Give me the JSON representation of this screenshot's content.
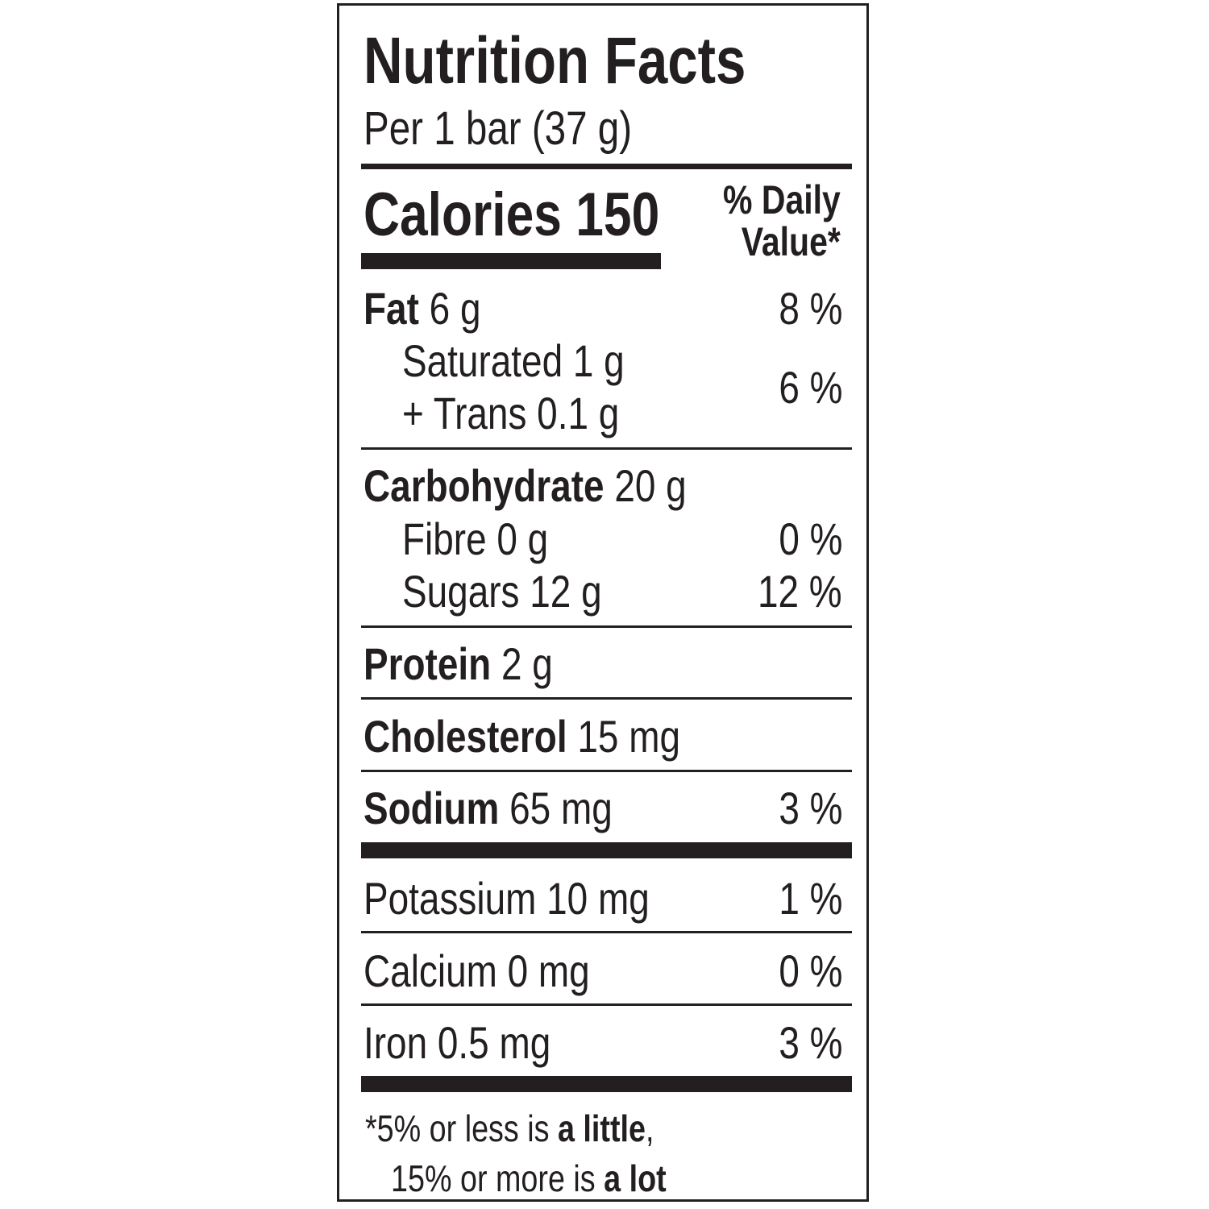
{
  "label": {
    "title": "Nutrition Facts",
    "serving": "Per 1 bar (37 g)",
    "calories_label": "Calories",
    "calories_value": "150",
    "daily_value_header_line1": "% Daily",
    "daily_value_header_line2": "Value*"
  },
  "nutrients": {
    "fat": {
      "name": "Fat",
      "amount": "6 g",
      "dv": "8 %"
    },
    "saturated": {
      "name": "Saturated 1 g"
    },
    "trans": {
      "name": "+ Trans 0.1 g"
    },
    "sat_trans_dv": "6 %",
    "carbohydrate": {
      "name": "Carbohydrate",
      "amount": "20 g"
    },
    "fibre": {
      "name": "Fibre 0 g",
      "dv": "0 %"
    },
    "sugars": {
      "name": "Sugars 12 g",
      "dv": "12 %"
    },
    "protein": {
      "name": "Protein",
      "amount": "2 g"
    },
    "cholesterol": {
      "name": "Cholesterol",
      "amount": "15 mg"
    },
    "sodium": {
      "name": "Sodium",
      "amount": "65 mg",
      "dv": "3 %"
    },
    "potassium": {
      "name": "Potassium 10 mg",
      "dv": "1 %"
    },
    "calcium": {
      "name": "Calcium 0 mg",
      "dv": "0 %"
    },
    "iron": {
      "name": "Iron 0.5 mg",
      "dv": "3 %"
    }
  },
  "footnote": {
    "asterisk": "*",
    "line1_text": "5% or less is ",
    "line1_bold": "a little",
    "line1_end": ",",
    "line2_text": "15% or more is ",
    "line2_bold": "a lot"
  },
  "colors": {
    "ink": "#231f20",
    "background": "#ffffff"
  }
}
